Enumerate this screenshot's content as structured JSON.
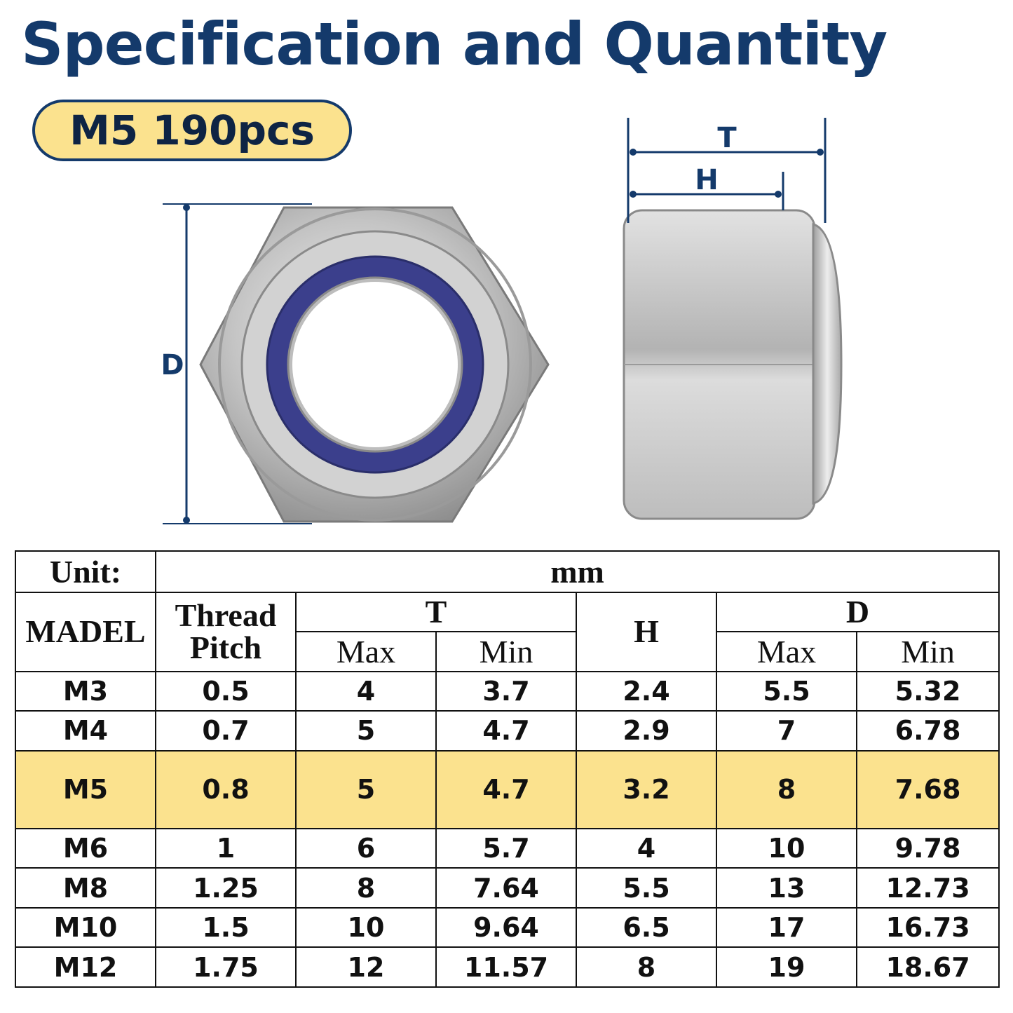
{
  "header": {
    "title": "Specification and Quantity",
    "badge": "M5 190pcs"
  },
  "figure": {
    "front_view_dimension": "D",
    "side_view_dimensions": [
      "T",
      "H"
    ],
    "colors": {
      "accent": "#143a6b",
      "badge_fill": "#fbe28e",
      "nylon_insert": "#3b3f8c",
      "steel": "#c9c9c9"
    }
  },
  "table": {
    "unit_label": "Unit:",
    "unit_value": "mm",
    "headers": {
      "model": "MADEL",
      "thread_pitch_line1": "Thread",
      "thread_pitch_line2": "Pitch",
      "t": "T",
      "h": "H",
      "d": "D",
      "max": "Max",
      "min": "Min"
    },
    "highlighted_model": "M5",
    "rows": [
      [
        "M3",
        "0.5",
        "4",
        "3.7",
        "2.4",
        "5.5",
        "5.32"
      ],
      [
        "M4",
        "0.7",
        "5",
        "4.7",
        "2.9",
        "7",
        "6.78"
      ],
      [
        "M5",
        "0.8",
        "5",
        "4.7",
        "3.2",
        "8",
        "7.68"
      ],
      [
        "M6",
        "1",
        "6",
        "5.7",
        "4",
        "10",
        "9.78"
      ],
      [
        "M8",
        "1.25",
        "8",
        "7.64",
        "5.5",
        "13",
        "12.73"
      ],
      [
        "M10",
        "1.5",
        "10",
        "9.64",
        "6.5",
        "17",
        "16.73"
      ],
      [
        "M12",
        "1.75",
        "12",
        "11.57",
        "8",
        "19",
        "18.67"
      ]
    ]
  }
}
